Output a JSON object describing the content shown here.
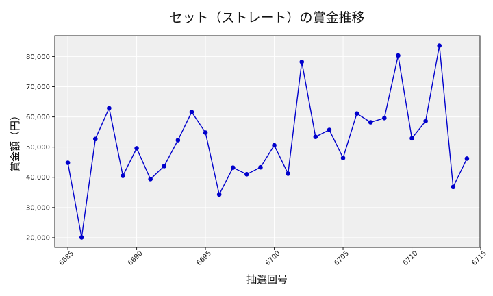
{
  "chart_data": {
    "type": "line",
    "title": "セット（ストレート）の賞金推移",
    "xlabel": "抽選回号",
    "ylabel": "賞金額（円）",
    "x": [
      6685,
      6686,
      6687,
      6688,
      6689,
      6690,
      6691,
      6692,
      6693,
      6694,
      6695,
      6696,
      6697,
      6698,
      6699,
      6700,
      6701,
      6702,
      6703,
      6704,
      6705,
      6706,
      6707,
      6708,
      6709,
      6710,
      6711,
      6712,
      6713,
      6714
    ],
    "series": [
      {
        "values": [
          44800,
          20100,
          52700,
          62900,
          40500,
          49600,
          39400,
          43700,
          52300,
          61600,
          54800,
          34300,
          43200,
          41000,
          43300,
          50600,
          41200,
          78200,
          53400,
          55700,
          46400,
          61100,
          58200,
          59600,
          80300,
          52900,
          58600,
          83600,
          36800,
          46200
        ],
        "color": "#0000cc"
      }
    ],
    "xlim": [
      6684.05,
      6714.95
    ],
    "ylim": [
      16800,
      86900
    ],
    "xticks": [
      6685,
      6690,
      6695,
      6700,
      6705,
      6710,
      6715
    ],
    "xtick_labels": [
      "6685",
      "6690",
      "6695",
      "6700",
      "6705",
      "6710",
      "6715"
    ],
    "yticks": [
      20000,
      30000,
      40000,
      50000,
      60000,
      70000,
      80000
    ],
    "ytick_labels": [
      "20,000",
      "30,000",
      "40,000",
      "50,000",
      "60,000",
      "70,000",
      "80,000"
    ],
    "grid": true,
    "legend": "none",
    "plot_background": "#efefef",
    "grid_color": "#ffffff"
  }
}
